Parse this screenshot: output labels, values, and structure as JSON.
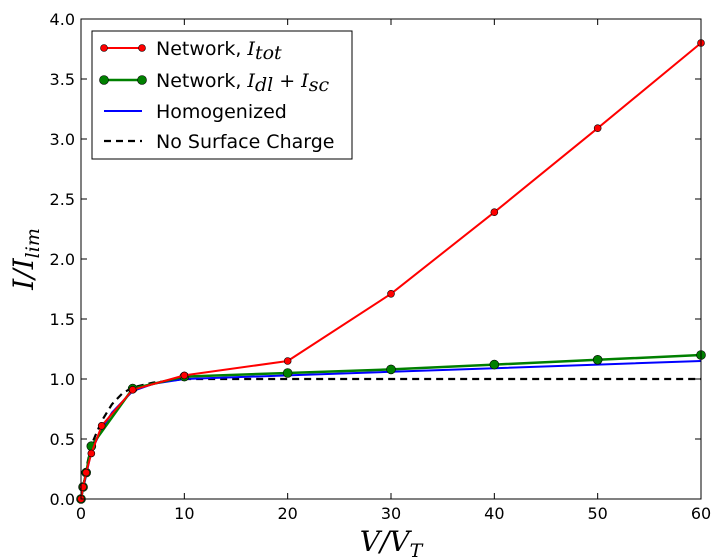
{
  "chart_data": {
    "type": "line",
    "title": "",
    "xlabel": "V/V",
    "xlabel_sub": "T",
    "ylabel": "I/I",
    "ylabel_sub": "lim",
    "xlim": [
      0,
      60
    ],
    "ylim": [
      0,
      4.0
    ],
    "x_ticks": [
      0,
      10,
      20,
      30,
      40,
      50,
      60
    ],
    "x_tick_labels": [
      "0",
      "10",
      "20",
      "30",
      "40",
      "50",
      "60"
    ],
    "y_ticks": [
      0.0,
      0.5,
      1.0,
      1.5,
      2.0,
      2.5,
      3.0,
      3.5,
      4.0
    ],
    "y_tick_labels": [
      "0.0",
      "0.5",
      "1.0",
      "1.5",
      "2.0",
      "2.5",
      "3.0",
      "3.5",
      "4.0"
    ],
    "grid": false,
    "legend_position": "top-left",
    "series": [
      {
        "name": "Network, I_tot",
        "legend_prefix": "Network, ",
        "legend_main": "I",
        "legend_sub": "tot",
        "color": "#ff0000",
        "marker": "circle-small",
        "dashed": false,
        "x": [
          0.0,
          0.2,
          0.5,
          1.0,
          2.0,
          5.0,
          10.0,
          20.0,
          30.0,
          40.0,
          50.0,
          60.0
        ],
        "values": [
          0.0,
          0.1,
          0.22,
          0.38,
          0.61,
          0.91,
          1.03,
          1.15,
          1.71,
          2.39,
          3.09,
          3.8
        ]
      },
      {
        "name": "Network, I_dl + I_sc",
        "legend_prefix": "Network, ",
        "legend_main": "I",
        "legend_sub": "dl",
        "legend_plus": " + I",
        "legend_sub2": "sc",
        "color": "#008000",
        "marker": "circle-large",
        "dashed": false,
        "x": [
          0.0,
          0.2,
          0.5,
          1.0,
          5.0,
          10.0,
          20.0,
          30.0,
          40.0,
          50.0,
          60.0
        ],
        "values": [
          0.0,
          0.1,
          0.22,
          0.44,
          0.92,
          1.02,
          1.05,
          1.08,
          1.12,
          1.16,
          1.2
        ]
      },
      {
        "name": "Homogenized",
        "color": "#0000ff",
        "marker": "none",
        "dashed": false,
        "x": [
          0.0,
          0.5,
          1.0,
          2.0,
          3.0,
          5.0,
          7.0,
          10.0,
          20.0,
          30.0,
          40.0,
          50.0,
          60.0
        ],
        "values": [
          0.0,
          0.2,
          0.4,
          0.58,
          0.72,
          0.9,
          0.96,
          1.0,
          1.03,
          1.06,
          1.09,
          1.12,
          1.15
        ]
      },
      {
        "name": "No Surface Charge",
        "color": "#000000",
        "marker": "none",
        "dashed": true,
        "x": [
          0.0,
          0.5,
          1.0,
          2.0,
          3.0,
          4.0,
          5.0,
          7.0,
          10.0,
          20.0,
          30.0,
          40.0,
          50.0,
          60.0
        ],
        "values": [
          0.0,
          0.25,
          0.45,
          0.65,
          0.79,
          0.88,
          0.93,
          0.97,
          1.0,
          1.0,
          1.0,
          1.0,
          1.0,
          1.0
        ]
      }
    ]
  }
}
